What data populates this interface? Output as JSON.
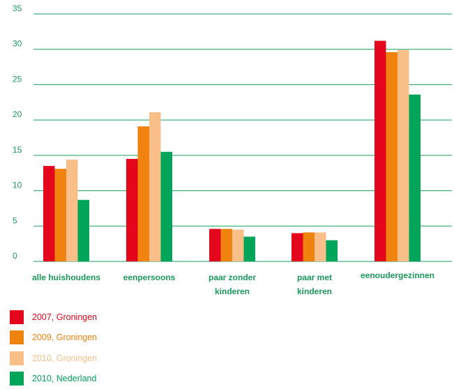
{
  "chart_data": {
    "type": "bar",
    "categories": [
      [
        "alle huishoudens"
      ],
      [
        "eenpersoons"
      ],
      [
        "paar zonder",
        "kinderen"
      ],
      [
        "paar met",
        "kinderen"
      ],
      [
        "eenoudergezinnen"
      ]
    ],
    "series": [
      {
        "name": "2007, Groningen",
        "color": "#e3061d",
        "values": [
          13.5,
          14.5,
          4.6,
          4.0,
          31.2
        ]
      },
      {
        "name": "2009, Groningen",
        "color": "#f0820f",
        "values": [
          13.1,
          19.1,
          4.6,
          4.1,
          29.6
        ]
      },
      {
        "name": "2010, Groningen",
        "color": "#f9bf88",
        "values": [
          14.4,
          21.1,
          4.5,
          4.1,
          29.9
        ]
      },
      {
        "name": "2010, Nederland",
        "color": "#00a55a",
        "values": [
          8.7,
          15.5,
          3.5,
          3.0,
          23.6
        ]
      }
    ],
    "yticks": [
      "0",
      "5",
      "10",
      "15",
      "20",
      "25",
      "30",
      "35"
    ],
    "ylim": [
      0,
      35
    ],
    "grid": true,
    "legend_position": "bottom-left",
    "colors": {
      "axis_text": "#1a9a5a",
      "grid": "#1a9a5a"
    }
  }
}
